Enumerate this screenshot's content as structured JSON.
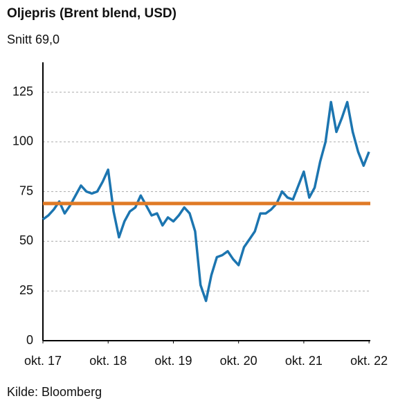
{
  "chart_data": {
    "type": "line",
    "title": "Oljepris (Brent blend, USD)",
    "subtitle": "Snitt 69,0",
    "source": "Kilde: Bloomberg",
    "color": "#1c75b0",
    "average": 69.0,
    "average_color": "#e07a26",
    "grid": true,
    "x": [
      "2017-10",
      "2017-11",
      "2017-12",
      "2018-01",
      "2018-02",
      "2018-03",
      "2018-04",
      "2018-05",
      "2018-06",
      "2018-07",
      "2018-08",
      "2018-09",
      "2018-10",
      "2018-11",
      "2018-12",
      "2019-01",
      "2019-02",
      "2019-03",
      "2019-04",
      "2019-05",
      "2019-06",
      "2019-07",
      "2019-08",
      "2019-09",
      "2019-10",
      "2019-11",
      "2019-12",
      "2020-01",
      "2020-02",
      "2020-03",
      "2020-04",
      "2020-05",
      "2020-06",
      "2020-07",
      "2020-08",
      "2020-09",
      "2020-10",
      "2020-11",
      "2020-12",
      "2021-01",
      "2021-02",
      "2021-03",
      "2021-04",
      "2021-05",
      "2021-06",
      "2021-07",
      "2021-08",
      "2021-09",
      "2021-10",
      "2021-11",
      "2021-12",
      "2022-01",
      "2022-02",
      "2022-03",
      "2022-04",
      "2022-05",
      "2022-06",
      "2022-07",
      "2022-08",
      "2022-09",
      "2022-10"
    ],
    "values": [
      61,
      63,
      66,
      70,
      64,
      68,
      73,
      78,
      75,
      74,
      75,
      80,
      86,
      65,
      52,
      60,
      65,
      67,
      73,
      68,
      63,
      64,
      58,
      62,
      60,
      63,
      67,
      64,
      55,
      28,
      20,
      33,
      42,
      43,
      45,
      41,
      38,
      47,
      51,
      55,
      64,
      64,
      66,
      69,
      75,
      72,
      71,
      78,
      85,
      72,
      77,
      90,
      100,
      120,
      105,
      112,
      120,
      105,
      95,
      88,
      95
    ],
    "xlim": [
      "2017-10",
      "2022-11"
    ],
    "xticks": [
      {
        "value": "2017-10",
        "label": "okt. 17"
      },
      {
        "value": "2018-10",
        "label": "okt. 18"
      },
      {
        "value": "2019-10",
        "label": "okt. 19"
      },
      {
        "value": "2020-10",
        "label": "okt. 20"
      },
      {
        "value": "2021-10",
        "label": "okt. 21"
      },
      {
        "value": "2022-10",
        "label": "okt. 22"
      }
    ],
    "ylim": [
      0,
      140
    ],
    "yticks": [
      0,
      25,
      50,
      75,
      100,
      125
    ]
  }
}
